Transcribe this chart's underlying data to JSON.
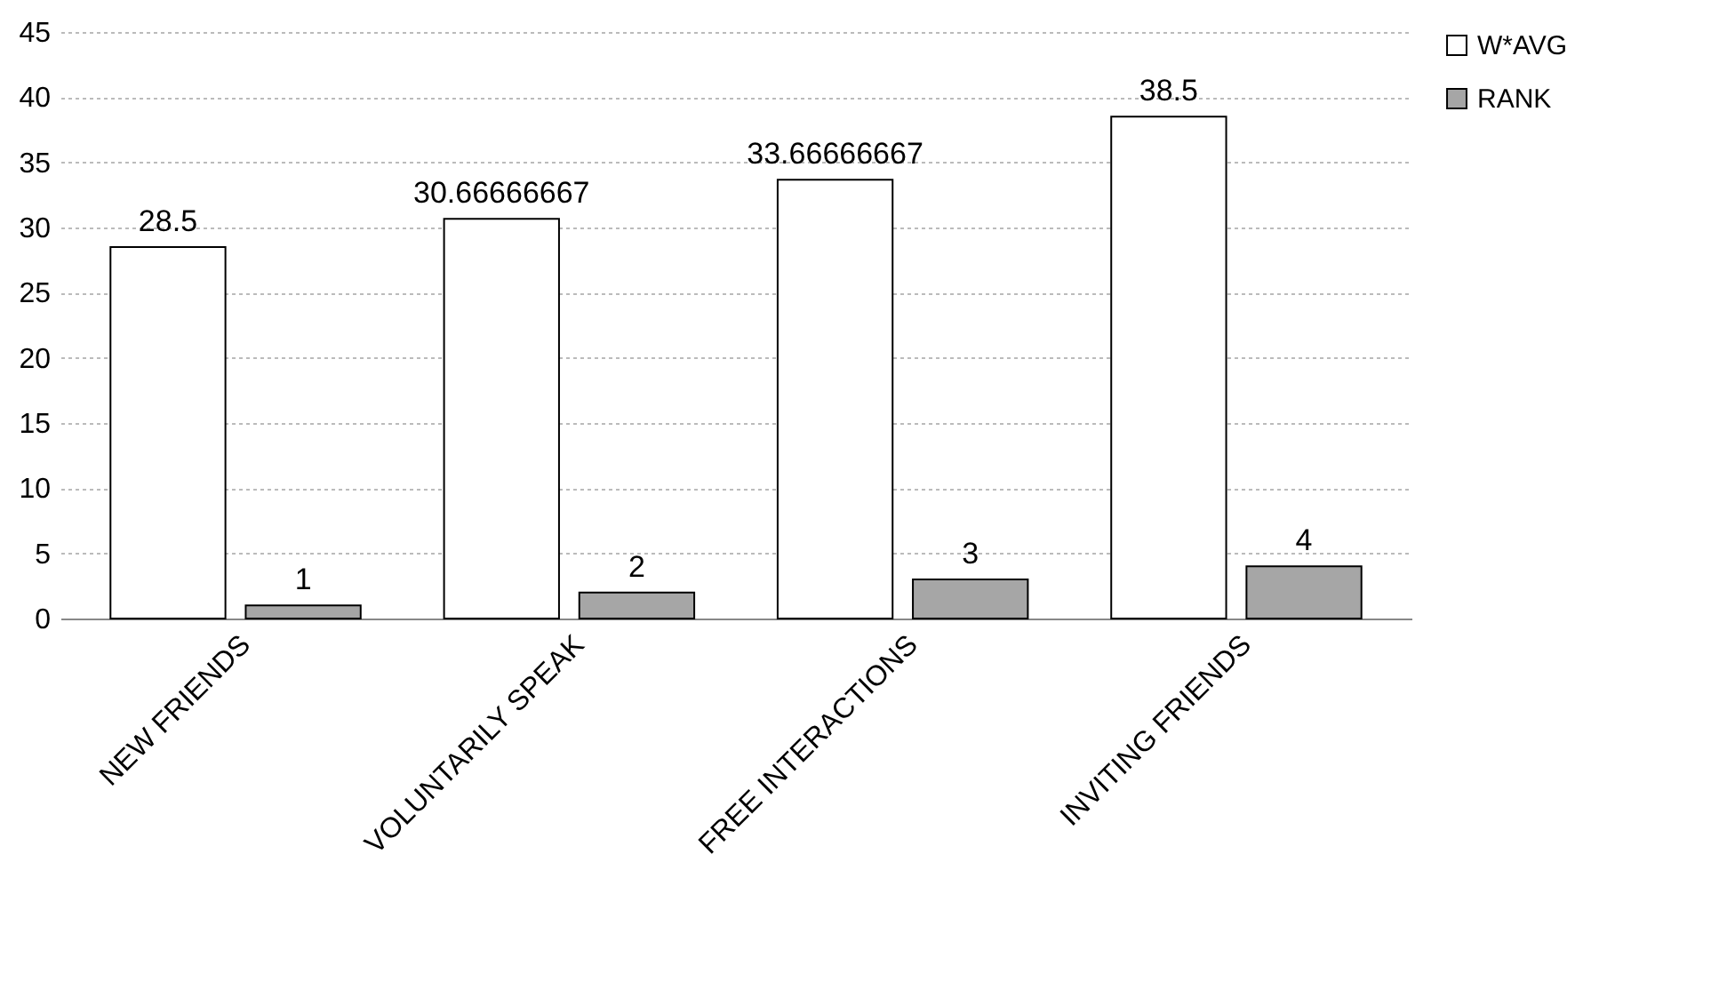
{
  "chart_data": {
    "type": "bar",
    "categories": [
      "NEW FRIENDS",
      "VOLUNTARILY SPEAK",
      "FREE INTERACTIONS",
      "INVITING FRIENDS"
    ],
    "series": [
      {
        "name": "W*AVG",
        "color": "#ffffff",
        "values": [
          28.5,
          30.66666667,
          33.66666667,
          38.5
        ]
      },
      {
        "name": "RANK",
        "color": "#a6a6a6",
        "values": [
          1,
          2,
          3,
          4
        ]
      }
    ],
    "ylim": [
      0,
      45
    ],
    "yticks": [
      0,
      5,
      10,
      15,
      20,
      25,
      30,
      35,
      40,
      45
    ],
    "grid": "y",
    "legend": "right",
    "data_labels": true
  }
}
